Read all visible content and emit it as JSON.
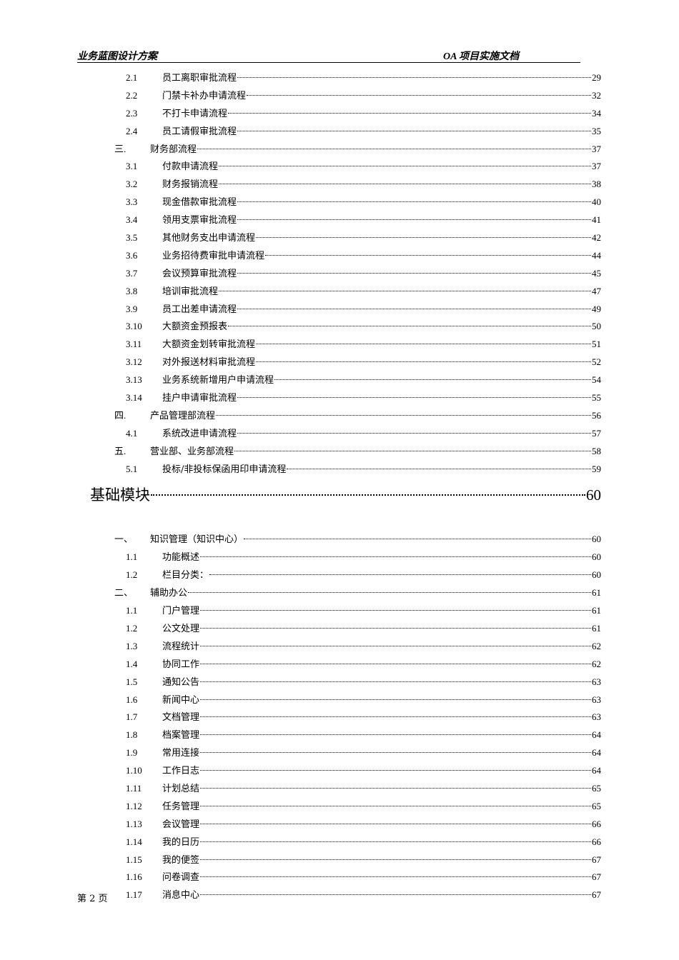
{
  "header": {
    "left": "业务蓝图设计方案",
    "right": "OA 项目实施文档"
  },
  "toc": [
    {
      "level": "sub",
      "num": "2.1",
      "text": "员工离职审批流程",
      "page": "29"
    },
    {
      "level": "sub",
      "num": "2.2",
      "text": "门禁卡补办申请流程",
      "page": "32"
    },
    {
      "level": "sub",
      "num": "2.3",
      "text": "不打卡申请流程",
      "page": "34"
    },
    {
      "level": "sub",
      "num": "2.4",
      "text": "员工请假审批流程",
      "page": "35"
    },
    {
      "level": "sec",
      "num": "三.",
      "text": "财务部流程",
      "page": "37"
    },
    {
      "level": "sub",
      "num": "3.1",
      "text": "付款申请流程",
      "page": "37"
    },
    {
      "level": "sub",
      "num": "3.2",
      "text": "财务报销流程",
      "page": "38"
    },
    {
      "level": "sub",
      "num": "3.3",
      "text": "现金借款审批流程",
      "page": "40"
    },
    {
      "level": "sub",
      "num": "3.4",
      "text": "领用支票审批流程",
      "page": "41"
    },
    {
      "level": "sub",
      "num": "3.5",
      "text": "其他财务支出申请流程",
      "page": "42"
    },
    {
      "level": "sub",
      "num": "3.6",
      "text": "业务招待费审批申请流程",
      "page": "44"
    },
    {
      "level": "sub",
      "num": "3.7",
      "text": "会议预算审批流程",
      "page": "45"
    },
    {
      "level": "sub",
      "num": "3.8",
      "text": "培训审批流程",
      "page": "47"
    },
    {
      "level": "sub",
      "num": "3.9",
      "text": "员工出差申请流程",
      "page": "49"
    },
    {
      "level": "sub",
      "num": "3.10",
      "text": "大额资金预报表",
      "page": "50"
    },
    {
      "level": "sub",
      "num": "3.11",
      "text": "大额资金划转审批流程",
      "page": "51"
    },
    {
      "level": "sub",
      "num": "3.12",
      "text": "对外报送材料审批流程",
      "page": "52"
    },
    {
      "level": "sub",
      "num": "3.13",
      "text": "业务系统新增用户申请流程",
      "page": "54"
    },
    {
      "level": "sub",
      "num": "3.14",
      "text": "挂户申请审批流程",
      "page": "55"
    },
    {
      "level": "sec",
      "num": "四.",
      "text": "产品管理部流程",
      "page": "56"
    },
    {
      "level": "sub",
      "num": "4.1",
      "text": "系统改进申请流程",
      "page": "57"
    },
    {
      "level": "sec",
      "num": "五.",
      "text": "营业部、业务部流程",
      "page": "58"
    },
    {
      "level": "sub",
      "num": "5.1",
      "text": "投标/非投标保函用印申请流程",
      "page": "59"
    },
    {
      "level": "chap",
      "num": "",
      "text": "基础模块",
      "page": "60"
    },
    {
      "level": "sec",
      "num": "一、",
      "text": "知识管理（知识中心）",
      "page": "60"
    },
    {
      "level": "sub",
      "num": "1.1",
      "text": "功能概述",
      "page": "60"
    },
    {
      "level": "sub",
      "num": "1.2",
      "text": "栏目分类：",
      "page": "60"
    },
    {
      "level": "sec",
      "num": "二、",
      "text": "辅助办公",
      "page": "61"
    },
    {
      "level": "sub",
      "num": "1.1",
      "text": "门户管理",
      "page": "61"
    },
    {
      "level": "sub",
      "num": "1.2",
      "text": "公文处理",
      "page": "61"
    },
    {
      "level": "sub",
      "num": "1.3",
      "text": "流程统计",
      "page": "62"
    },
    {
      "level": "sub",
      "num": "1.4",
      "text": "协同工作",
      "page": "62"
    },
    {
      "level": "sub",
      "num": "1.5",
      "text": "通知公告",
      "page": "63"
    },
    {
      "level": "sub",
      "num": "1.6",
      "text": "新闻中心",
      "page": "63"
    },
    {
      "level": "sub",
      "num": "1.7",
      "text": "文档管理",
      "page": "63"
    },
    {
      "level": "sub",
      "num": "1.8",
      "text": "档案管理",
      "page": "64"
    },
    {
      "level": "sub",
      "num": "1.9",
      "text": "常用连接",
      "page": "64"
    },
    {
      "level": "sub",
      "num": "1.10",
      "text": "工作日志",
      "page": "64"
    },
    {
      "level": "sub",
      "num": "1.11",
      "text": "计划总结",
      "page": "65"
    },
    {
      "level": "sub",
      "num": "1.12",
      "text": "任务管理",
      "page": "65"
    },
    {
      "level": "sub",
      "num": "1.13",
      "text": "会议管理",
      "page": "66"
    },
    {
      "level": "sub",
      "num": "1.14",
      "text": "我的日历",
      "page": "66"
    },
    {
      "level": "sub",
      "num": "1.15",
      "text": "我的便签",
      "page": "67"
    },
    {
      "level": "sub",
      "num": "1.16",
      "text": "问卷调查",
      "page": "67"
    },
    {
      "level": "sub",
      "num": "1.17",
      "text": "消息中心",
      "page": "67"
    }
  ],
  "footer": {
    "page_label": "第 2 页"
  }
}
